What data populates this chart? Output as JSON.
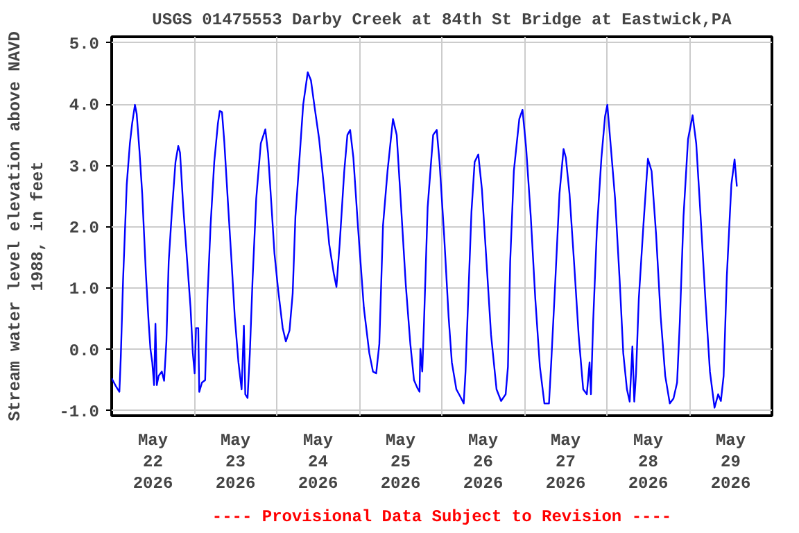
{
  "chart_data": {
    "type": "line",
    "title": "USGS 01475553 Darby Creek at 84th St Bridge at Eastwick,PA",
    "ylabel": "Stream water level elevation above NAVD\n1988, in feet",
    "annotations": [
      "---- Provisional Data Subject to Revision ----"
    ],
    "xlim": [
      "2026-05-22T00:00",
      "2026-05-30T00:00"
    ],
    "xticks": [
      {
        "value": "2026-05-22T12:00",
        "label": "May\n22\n2026"
      },
      {
        "value": "2026-05-23T00:00",
        "label": null
      },
      {
        "value": "2026-05-23T12:00",
        "label": "May\n23\n2026"
      },
      {
        "value": "2026-05-24T00:00",
        "label": null
      },
      {
        "value": "2026-05-24T12:00",
        "label": "May\n24\n2026"
      },
      {
        "value": "2026-05-25T00:00",
        "label": null
      },
      {
        "value": "2026-05-25T12:00",
        "label": "May\n25\n2026"
      },
      {
        "value": "2026-05-26T00:00",
        "label": null
      },
      {
        "value": "2026-05-26T12:00",
        "label": "May\n26\n2026"
      },
      {
        "value": "2026-05-27T00:00",
        "label": null
      },
      {
        "value": "2026-05-27T12:00",
        "label": "May\n27\n2026"
      },
      {
        "value": "2026-05-28T00:00",
        "label": null
      },
      {
        "value": "2026-05-28T12:00",
        "label": "May\n28\n2026"
      },
      {
        "value": "2026-05-29T00:00",
        "label": null
      },
      {
        "value": "2026-05-29T12:00",
        "label": "May\n29\n2026"
      }
    ],
    "ylim": [
      -1.08,
      5.1
    ],
    "yticks": [
      {
        "value": -1,
        "label": "-1.0"
      },
      {
        "value": 0,
        "label": "0.0"
      },
      {
        "value": 1,
        "label": "1.0"
      },
      {
        "value": 2,
        "label": "2.0"
      },
      {
        "value": 3,
        "label": "3.0"
      },
      {
        "value": 4,
        "label": "4.0"
      },
      {
        "value": 5,
        "label": "5.0"
      }
    ],
    "grid": true,
    "marker": "none",
    "line_style": "solid",
    "series": [
      {
        "color": "#0000ff",
        "x": [
          "2026-05-22T00:00",
          "2026-05-22T00:40",
          "2026-05-22T01:20",
          "2026-05-22T02:15",
          "2026-05-22T02:39",
          "2026-05-22T03:19",
          "2026-05-22T04:23",
          "2026-05-22T05:18",
          "2026-05-22T05:58",
          "2026-05-22T06:46",
          "2026-05-22T07:17",
          "2026-05-22T08:05",
          "2026-05-22T08:53",
          "2026-05-22T09:57",
          "2026-05-22T10:44",
          "2026-05-22T11:16",
          "2026-05-22T11:48",
          "2026-05-22T12:20",
          "2026-05-22T12:44",
          "2026-05-22T13:08",
          "2026-05-22T13:40",
          "2026-05-22T14:35",
          "2026-05-22T15:15",
          "2026-05-22T15:55",
          "2026-05-22T16:35",
          "2026-05-22T17:30",
          "2026-05-22T18:34",
          "2026-05-22T19:22",
          "2026-05-22T19:53",
          "2026-05-22T20:49",
          "2026-05-22T21:53",
          "2026-05-22T22:56",
          "2026-05-22T23:36",
          "2026-05-23T00:08",
          "2026-05-23T00:32",
          "2026-05-23T01:11",
          "2026-05-23T01:28",
          "2026-05-23T02:15",
          "2026-05-23T03:11",
          "2026-05-23T03:51",
          "2026-05-23T04:46",
          "2026-05-23T05:50",
          "2026-05-23T06:54",
          "2026-05-23T07:26",
          "2026-05-23T08:05",
          "2026-05-23T08:45",
          "2026-05-23T09:49",
          "2026-05-23T10:52",
          "2026-05-23T11:48",
          "2026-05-23T12:52",
          "2026-05-23T13:47",
          "2026-05-23T14:27",
          "2026-05-23T14:51",
          "2026-05-23T15:31",
          "2026-05-23T16:11",
          "2026-05-23T16:58",
          "2026-05-23T18:02",
          "2026-05-23T19:22",
          "2026-05-23T20:41",
          "2026-05-23T21:29",
          "2026-05-23T22:25",
          "2026-05-23T23:20",
          "2026-05-24T00:24",
          "2026-05-24T01:44",
          "2026-05-24T02:39",
          "2026-05-24T03:43",
          "2026-05-24T04:38",
          "2026-05-24T05:26",
          "2026-05-24T06:22",
          "2026-05-24T07:41",
          "2026-05-24T09:01",
          "2026-05-24T09:57",
          "2026-05-24T11:01",
          "2026-05-24T12:20",
          "2026-05-24T13:40",
          "2026-05-24T15:15",
          "2026-05-24T16:35",
          "2026-05-24T17:22",
          "2026-05-24T18:18",
          "2026-05-24T19:38",
          "2026-05-24T20:33",
          "2026-05-24T21:21",
          "2026-05-24T22:17",
          "2026-05-24T23:36",
          "2026-05-25T01:20",
          "2026-05-25T02:55",
          "2026-05-25T03:59",
          "2026-05-25T04:55",
          "2026-05-25T05:50",
          "2026-05-25T06:54",
          "2026-05-25T08:13",
          "2026-05-25T09:48",
          "2026-05-25T10:53",
          "2026-05-25T11:56",
          "2026-05-25T13:32",
          "2026-05-25T14:51",
          "2026-05-25T15:55",
          "2026-05-25T16:50",
          "2026-05-25T17:31",
          "2026-05-25T17:46",
          "2026-05-25T18:19",
          "2026-05-25T18:50",
          "2026-05-25T19:53",
          "2026-05-25T21:29",
          "2026-05-25T22:32",
          "2026-05-25T23:20",
          "2026-05-26T00:40",
          "2026-05-26T01:59",
          "2026-05-26T02:55",
          "2026-05-26T04:14",
          "2026-05-26T05:18",
          "2026-05-26T06:22",
          "2026-05-26T06:54",
          "2026-05-26T07:41",
          "2026-05-26T08:37",
          "2026-05-26T09:33",
          "2026-05-26T10:37",
          "2026-05-26T11:40",
          "2026-05-26T13:00",
          "2026-05-26T14:19",
          "2026-05-26T15:55",
          "2026-05-26T17:14",
          "2026-05-26T18:34",
          "2026-05-26T19:14",
          "2026-05-26T19:53",
          "2026-05-26T20:57",
          "2026-05-26T22:32",
          "2026-05-26T23:28",
          "2026-05-27T00:32",
          "2026-05-27T01:52",
          "2026-05-27T03:11",
          "2026-05-27T04:31",
          "2026-05-27T05:50",
          "2026-05-27T07:10",
          "2026-05-27T07:49",
          "2026-05-27T08:53",
          "2026-05-27T10:13",
          "2026-05-27T11:24",
          "2026-05-27T12:04",
          "2026-05-27T13:08",
          "2026-05-27T14:27",
          "2026-05-27T15:47",
          "2026-05-27T17:07",
          "2026-05-27T18:10",
          "2026-05-27T18:58",
          "2026-05-27T19:22",
          "2026-05-27T20:01",
          "2026-05-27T21:05",
          "2026-05-27T22:25",
          "2026-05-27T23:28",
          "2026-05-28T00:08",
          "2026-05-28T01:04",
          "2026-05-28T02:23",
          "2026-05-28T03:43",
          "2026-05-28T04:46",
          "2026-05-28T05:50",
          "2026-05-28T06:38",
          "2026-05-28T07:25",
          "2026-05-28T07:58",
          "2026-05-28T08:29",
          "2026-05-28T09:17",
          "2026-05-28T10:37",
          "2026-05-28T11:56",
          "2026-05-28T13:00",
          "2026-05-28T14:19",
          "2026-05-28T15:39",
          "2026-05-28T16:58",
          "2026-05-28T18:18",
          "2026-05-28T19:22",
          "2026-05-28T20:25",
          "2026-05-28T21:13",
          "2026-05-28T22:17",
          "2026-05-28T23:36",
          "2026-05-29T00:56",
          "2026-05-29T01:59",
          "2026-05-29T03:11",
          "2026-05-29T04:38",
          "2026-05-29T05:58",
          "2026-05-29T07:18",
          "2026-05-29T08:22",
          "2026-05-29T09:09",
          "2026-05-29T09:57",
          "2026-05-29T10:53",
          "2026-05-29T12:12",
          "2026-05-29T13:08",
          "2026-05-29T13:48"
        ],
        "values": [
          -0.47,
          -0.54,
          -0.61,
          -0.69,
          -0.13,
          1.13,
          2.69,
          3.36,
          3.69,
          3.99,
          3.84,
          3.24,
          2.54,
          1.24,
          0.46,
          0.01,
          -0.21,
          -0.58,
          0.42,
          -0.58,
          -0.43,
          -0.36,
          -0.51,
          0.13,
          1.43,
          2.24,
          3.06,
          3.32,
          3.21,
          2.32,
          1.5,
          0.68,
          -0.06,
          -0.39,
          0.35,
          0.35,
          -0.69,
          -0.54,
          -0.5,
          0.83,
          2.03,
          3.06,
          3.69,
          3.89,
          3.87,
          3.39,
          2.39,
          1.43,
          0.53,
          -0.21,
          -0.65,
          0.39,
          -0.73,
          -0.79,
          -0.06,
          1.13,
          2.46,
          3.36,
          3.59,
          3.2,
          2.39,
          1.57,
          0.98,
          0.35,
          0.13,
          0.31,
          0.91,
          2.17,
          2.91,
          3.99,
          4.52,
          4.39,
          3.95,
          3.43,
          2.69,
          1.72,
          1.24,
          1.02,
          1.72,
          2.91,
          3.5,
          3.58,
          3.13,
          2.02,
          0.68,
          -0.06,
          -0.36,
          -0.39,
          0.09,
          2.02,
          2.91,
          3.76,
          3.5,
          2.54,
          1.05,
          0.09,
          -0.5,
          -0.62,
          -0.69,
          0.01,
          -0.36,
          0.46,
          2.32,
          3.5,
          3.58,
          3.06,
          1.87,
          0.53,
          -0.21,
          -0.65,
          -0.76,
          -0.88,
          -0.36,
          0.83,
          2.24,
          3.06,
          3.18,
          2.61,
          1.43,
          0.24,
          -0.65,
          -0.84,
          -0.73,
          -0.28,
          1.43,
          2.91,
          3.76,
          3.91,
          3.28,
          2.17,
          0.83,
          -0.28,
          -0.88,
          -0.88,
          -0.21,
          0.98,
          2.54,
          3.27,
          3.13,
          2.54,
          1.43,
          0.24,
          -0.65,
          -0.73,
          -0.21,
          -0.73,
          0.46,
          1.94,
          3.13,
          3.8,
          3.99,
          3.36,
          2.46,
          1.13,
          -0.06,
          -0.65,
          -0.85,
          0.05,
          -0.85,
          -0.39,
          0.83,
          2.02,
          3.11,
          2.91,
          1.87,
          0.53,
          -0.43,
          -0.88,
          -0.8,
          -0.54,
          0.46,
          2.17,
          3.43,
          3.82,
          3.36,
          2.24,
          0.83,
          -0.36,
          -0.95,
          -0.73,
          -0.84,
          -0.43,
          1.2,
          2.69,
          3.1,
          2.66
        ]
      }
    ]
  }
}
